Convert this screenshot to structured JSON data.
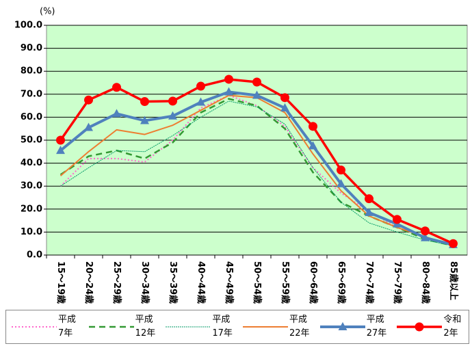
{
  "chart_data": {
    "type": "line",
    "y_unit": "(%)",
    "categories": [
      "15～19歳",
      "20～24歳",
      "25～29歳",
      "30～34歳",
      "35～39歳",
      "40～44歳",
      "45～49歳",
      "50～54歳",
      "55～59歳",
      "60～64歳",
      "65～69歳",
      "70～74歳",
      "75～79歳",
      "80～84歳",
      "85歳以上"
    ],
    "series": [
      {
        "name": "平成7年",
        "color": "#ff66cc",
        "style": "dotted",
        "marker": null,
        "values": [
          30,
          42,
          42,
          40.5,
          50,
          64,
          69.5,
          65,
          56,
          38,
          27,
          19,
          12,
          8,
          4
        ]
      },
      {
        "name": "平成12年",
        "color": "#339933",
        "style": "dashed",
        "marker": null,
        "values": [
          35,
          43,
          45.5,
          42,
          49,
          62,
          68,
          65,
          55,
          36,
          23,
          17,
          12,
          7,
          4
        ]
      },
      {
        "name": "平成17年",
        "color": "#009966",
        "style": "thin-dotted",
        "marker": null,
        "values": [
          30,
          38,
          45.5,
          45,
          52,
          60,
          67,
          64.5,
          57,
          38,
          23,
          14,
          10,
          6.5,
          4
        ]
      },
      {
        "name": "平成22年",
        "color": "#ed7d31",
        "style": "solid",
        "marker": null,
        "values": [
          34.5,
          45,
          54.5,
          52.5,
          56.5,
          63,
          69.5,
          68.5,
          62,
          44,
          28,
          17,
          12,
          8,
          4
        ]
      },
      {
        "name": "平成27年",
        "color": "#4f81bd",
        "style": "thick",
        "marker": "triangle",
        "values": [
          45.5,
          55.5,
          61.5,
          58.5,
          60.5,
          66.5,
          71,
          69.5,
          64,
          47.5,
          31,
          18.5,
          13.5,
          7.5,
          4.5
        ]
      },
      {
        "name": "令和2年",
        "color": "#ff0000",
        "style": "bold",
        "marker": "circle",
        "values": [
          50,
          67.5,
          73,
          66.8,
          67,
          73.5,
          76.5,
          75.3,
          68.5,
          56,
          37,
          24.5,
          15.5,
          10.5,
          5
        ]
      }
    ],
    "ylim": [
      0,
      100
    ],
    "yticks": [
      {
        "value": 0,
        "label": "0.0"
      },
      {
        "value": 10,
        "label": "10.0"
      },
      {
        "value": 20,
        "label": "20.0"
      },
      {
        "value": 30,
        "label": "30.0"
      },
      {
        "value": 40,
        "label": "40.0"
      },
      {
        "value": 50,
        "label": "50.0"
      },
      {
        "value": 60,
        "label": "60.0"
      },
      {
        "value": 70,
        "label": "70.0"
      },
      {
        "value": 80,
        "label": "80.0"
      },
      {
        "value": 90,
        "label": "90.0"
      },
      {
        "value": 100,
        "label": "100.0"
      }
    ],
    "grid": true,
    "plot_background": "#ccffcc"
  }
}
